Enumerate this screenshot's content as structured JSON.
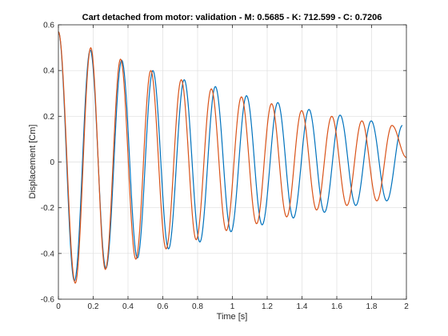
{
  "chart_data": {
    "type": "line",
    "title": "Cart detached from motor: validation - M: 0.5685 - K: 712.599 - C: 0.7206",
    "xlabel": "Time [s]",
    "ylabel": "Displacement [Cm]",
    "xlim": [
      0,
      2
    ],
    "ylim": [
      -0.6,
      0.6
    ],
    "x_ticks": [
      "0",
      "0.2",
      "0.4",
      "0.6",
      "0.8",
      "1",
      "1.2",
      "1.4",
      "1.6",
      "1.8",
      "2"
    ],
    "y_ticks": [
      "-0.6",
      "-0.4",
      "-0.2",
      "0",
      "0.2",
      "0.4",
      "0.6"
    ],
    "grid": true,
    "colors": {
      "series_1": "#0072bd",
      "series_2": "#d95319"
    },
    "series": [
      {
        "color": "#0072bd",
        "x": [
          0,
          0.092,
          0.183,
          0.273,
          0.364,
          0.454,
          0.543,
          0.633,
          0.723,
          0.813,
          0.902,
          0.992,
          1.081,
          1.171,
          1.261,
          1.35,
          1.44,
          1.529,
          1.619,
          1.709,
          1.798,
          1.887,
          1.977
        ],
        "y": [
          0.57,
          -0.52,
          0.49,
          -0.465,
          0.445,
          -0.42,
          0.4,
          -0.38,
          0.36,
          -0.35,
          0.33,
          -0.305,
          0.29,
          -0.275,
          0.26,
          -0.245,
          0.23,
          -0.22,
          0.205,
          -0.19,
          0.18,
          -0.17,
          0.16
        ]
      },
      {
        "color": "#d95319",
        "x": [
          0,
          0.097,
          0.186,
          0.27,
          0.357,
          0.445,
          0.531,
          0.619,
          0.706,
          0.792,
          0.879,
          0.965,
          1.052,
          1.139,
          1.225,
          1.312,
          1.398,
          1.484,
          1.571,
          1.658,
          1.744,
          1.83,
          1.917,
          2.0
        ],
        "y": [
          0.57,
          -0.53,
          0.5,
          -0.47,
          0.45,
          -0.425,
          0.4,
          -0.38,
          0.36,
          -0.34,
          0.32,
          -0.3,
          0.285,
          -0.27,
          0.255,
          -0.24,
          0.225,
          -0.21,
          0.2,
          -0.19,
          0.18,
          -0.17,
          0.16,
          0.02
        ]
      }
    ]
  }
}
